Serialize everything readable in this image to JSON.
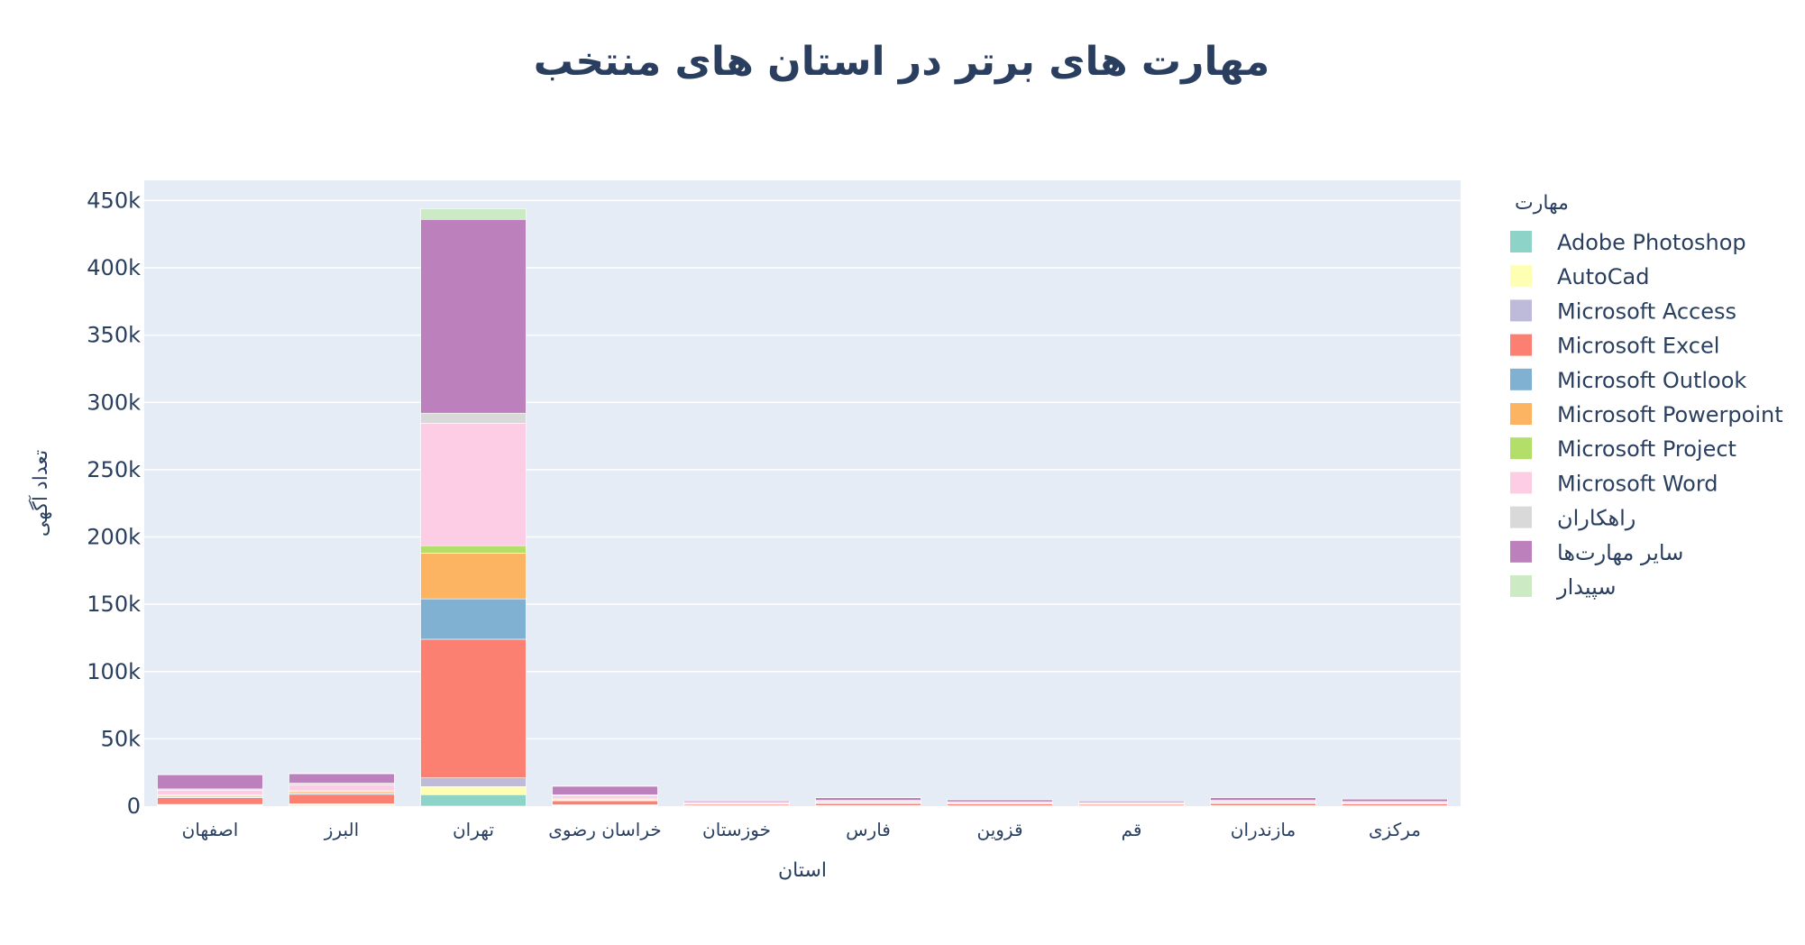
{
  "chart_data": {
    "type": "bar",
    "stacked": true,
    "title": "مهارت های برتر در استان های منتخب",
    "xlabel": "استان",
    "ylabel": "تعداد آگهی",
    "ylim": [
      0,
      465000
    ],
    "yticks": [
      0,
      50000,
      100000,
      150000,
      200000,
      250000,
      300000,
      350000,
      400000,
      450000
    ],
    "ytick_labels": [
      "0",
      "50k",
      "100k",
      "150k",
      "200k",
      "250k",
      "300k",
      "350k",
      "400k",
      "450k"
    ],
    "grid": true,
    "legend_title": "مهارت",
    "legend_position": "right",
    "categories": [
      "اصفهان",
      "البرز",
      "تهران",
      "خراسان رضوی",
      "خوزستان",
      "فارس",
      "قزوین",
      "قم",
      "مازندران",
      "مرکزی"
    ],
    "series": [
      {
        "name": "Adobe Photoshop",
        "color": "#8dd3c7",
        "values": [
          400,
          600,
          8500,
          300,
          100,
          150,
          100,
          100,
          150,
          100
        ]
      },
      {
        "name": "AutoCad",
        "color": "#ffffb3",
        "values": [
          500,
          700,
          6000,
          400,
          150,
          200,
          150,
          100,
          200,
          150
        ]
      },
      {
        "name": "Microsoft Access",
        "color": "#bebada",
        "values": [
          400,
          500,
          6500,
          300,
          100,
          150,
          100,
          100,
          150,
          100
        ]
      },
      {
        "name": "Microsoft Excel",
        "color": "#fb8072",
        "values": [
          5000,
          7000,
          103000,
          3000,
          1000,
          1500,
          1200,
          900,
          1500,
          1300
        ]
      },
      {
        "name": "Microsoft Outlook",
        "color": "#80b1d3",
        "values": [
          500,
          700,
          30000,
          400,
          100,
          150,
          100,
          100,
          150,
          100
        ]
      },
      {
        "name": "Microsoft Powerpoint",
        "color": "#fdb462",
        "values": [
          1000,
          1300,
          34000,
          700,
          200,
          300,
          200,
          200,
          300,
          200
        ]
      },
      {
        "name": "Microsoft Project",
        "color": "#b3de69",
        "values": [
          500,
          600,
          5500,
          300,
          100,
          150,
          100,
          100,
          150,
          100
        ]
      },
      {
        "name": "Microsoft Word",
        "color": "#fccde5",
        "values": [
          3500,
          4500,
          91000,
          2200,
          800,
          1200,
          900,
          800,
          1200,
          1000
        ]
      },
      {
        "name": "راهکاران",
        "color": "#d9d9d9",
        "values": [
          1000,
          1200,
          7500,
          800,
          300,
          500,
          400,
          300,
          500,
          400
        ]
      },
      {
        "name": "سایر مهارت‌ها",
        "color": "#bc80bd",
        "values": [
          10500,
          7000,
          144000,
          6400,
          1000,
          2000,
          1500,
          1100,
          2100,
          1800
        ]
      },
      {
        "name": "سپیدار",
        "color": "#ccebc5",
        "values": [
          200,
          300,
          8000,
          200,
          50,
          100,
          50,
          50,
          100,
          50
        ]
      }
    ]
  }
}
